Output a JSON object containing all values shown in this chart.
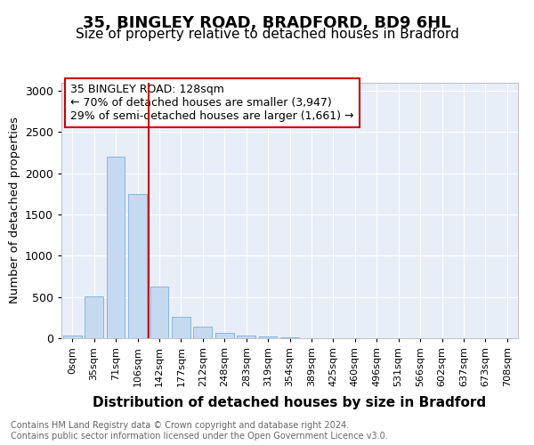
{
  "title1": "35, BINGLEY ROAD, BRADFORD, BD9 6HL",
  "title2": "Size of property relative to detached houses in Bradford",
  "xlabel": "Distribution of detached houses by size in Bradford",
  "ylabel": "Number of detached properties",
  "categories": [
    "0sqm",
    "35sqm",
    "71sqm",
    "106sqm",
    "142sqm",
    "177sqm",
    "212sqm",
    "248sqm",
    "283sqm",
    "319sqm",
    "354sqm",
    "389sqm",
    "425sqm",
    "460sqm",
    "496sqm",
    "531sqm",
    "566sqm",
    "602sqm",
    "637sqm",
    "673sqm",
    "708sqm"
  ],
  "values": [
    30,
    510,
    2200,
    1750,
    630,
    260,
    135,
    70,
    30,
    20,
    10,
    5,
    5,
    2,
    0,
    0,
    0,
    0,
    0,
    0,
    0
  ],
  "bar_color": "#c5d9f1",
  "bar_edgecolor": "#7bafd4",
  "annotation_text": "35 BINGLEY ROAD: 128sqm\n← 70% of detached houses are smaller (3,947)\n29% of semi-detached houses are larger (1,661) →",
  "annotation_box_color": "#ffffff",
  "annotation_box_edgecolor": "#cc0000",
  "footer": "Contains HM Land Registry data © Crown copyright and database right 2024.\nContains public sector information licensed under the Open Government Licence v3.0.",
  "ylim": [
    0,
    3100
  ],
  "yticks": [
    0,
    500,
    1000,
    1500,
    2000,
    2500,
    3000
  ],
  "background_color": "#ffffff",
  "plot_bg_color": "#e8eef7",
  "grid_color": "#ffffff",
  "title1_fontsize": 13,
  "title2_fontsize": 11,
  "xlabel_fontsize": 11,
  "ylabel_fontsize": 9.5,
  "tick_fontsize": 9,
  "xtick_fontsize": 8
}
